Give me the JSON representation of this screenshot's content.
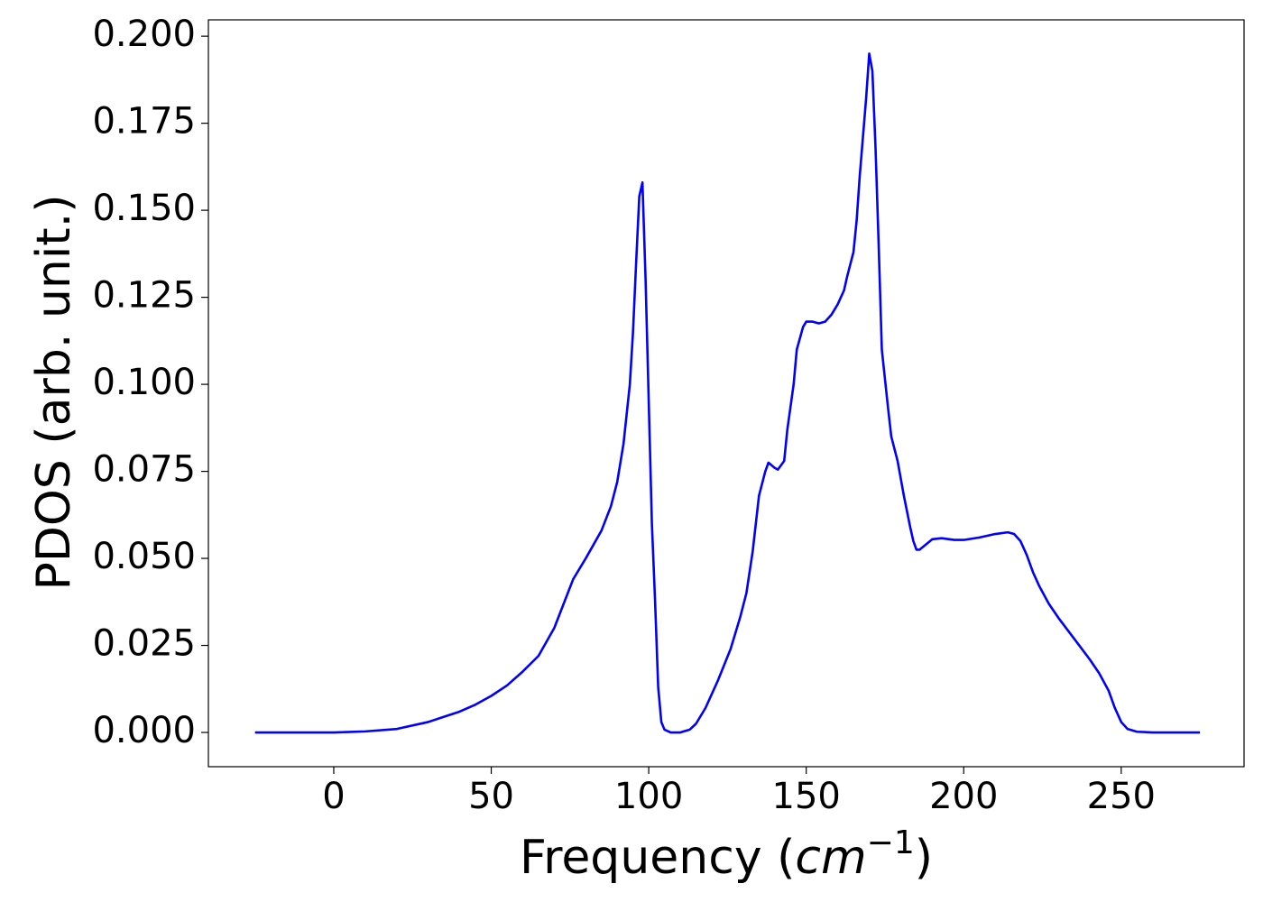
{
  "chart_data": {
    "type": "line",
    "x_label": [
      "Frequency (",
      "cm",
      "−1",
      ")"
    ],
    "y_label": "PDOS (arb. unit.)",
    "x": [
      -25,
      0,
      10,
      20,
      30,
      35,
      40,
      45,
      50,
      55,
      60,
      65,
      70,
      73,
      76,
      80,
      85,
      88,
      90,
      92,
      94,
      95,
      96,
      97,
      98,
      99,
      100,
      101,
      102,
      103,
      104,
      105,
      107,
      110,
      113,
      115,
      118,
      122,
      126,
      129,
      131,
      133,
      135,
      137,
      138,
      140,
      141,
      143,
      144,
      146,
      147,
      149,
      150,
      152,
      154,
      156,
      158,
      160,
      162,
      163,
      165,
      166,
      167,
      169,
      170,
      171,
      172,
      173,
      174,
      176,
      177,
      179,
      181,
      183,
      184,
      185,
      186,
      188,
      190,
      193,
      197,
      200,
      205,
      210,
      214,
      216,
      218,
      220,
      222,
      224,
      227,
      230,
      235,
      240,
      243,
      246,
      248,
      250,
      252,
      255,
      260,
      275
    ],
    "series": [
      {
        "color": "#0000ff",
        "values": [
          0,
          0,
          0.0003,
          0.001,
          0.003,
          0.0045,
          0.006,
          0.008,
          0.0105,
          0.0135,
          0.0175,
          0.022,
          0.03,
          0.037,
          0.044,
          0.05,
          0.058,
          0.065,
          0.072,
          0.083,
          0.1,
          0.115,
          0.135,
          0.154,
          0.158,
          0.13,
          0.095,
          0.06,
          0.038,
          0.013,
          0.003,
          0.0008,
          0,
          0,
          0.0008,
          0.0025,
          0.007,
          0.015,
          0.024,
          0.033,
          0.04,
          0.052,
          0.068,
          0.075,
          0.0775,
          0.076,
          0.0755,
          0.078,
          0.087,
          0.1,
          0.11,
          0.1165,
          0.118,
          0.118,
          0.1175,
          0.118,
          0.12,
          0.123,
          0.127,
          0.131,
          0.138,
          0.147,
          0.16,
          0.182,
          0.195,
          0.19,
          0.168,
          0.14,
          0.11,
          0.093,
          0.085,
          0.078,
          0.068,
          0.059,
          0.055,
          0.0525,
          0.0525,
          0.054,
          0.0555,
          0.0558,
          0.0553,
          0.0553,
          0.056,
          0.057,
          0.0575,
          0.057,
          0.055,
          0.051,
          0.046,
          0.042,
          0.037,
          0.033,
          0.027,
          0.021,
          0.017,
          0.012,
          0.007,
          0.003,
          0.001,
          0.0002,
          0,
          0
        ]
      }
    ],
    "xlim": [
      -39.8,
      289
    ],
    "ylim": [
      -0.00984,
      0.2047
    ],
    "xticks": [
      0,
      50,
      100,
      150,
      200,
      250
    ],
    "yticks": [
      {
        "value": 0,
        "label": "0.000"
      },
      {
        "value": 0.025,
        "label": "0.025"
      },
      {
        "value": 0.05,
        "label": "0.050"
      },
      {
        "value": 0.075,
        "label": "0.075"
      },
      {
        "value": 0.1,
        "label": "0.100"
      },
      {
        "value": 0.125,
        "label": "0.125"
      },
      {
        "value": 0.15,
        "label": "0.150"
      },
      {
        "value": 0.175,
        "label": "0.175"
      },
      {
        "value": 0.2,
        "label": "0.200"
      }
    ]
  }
}
